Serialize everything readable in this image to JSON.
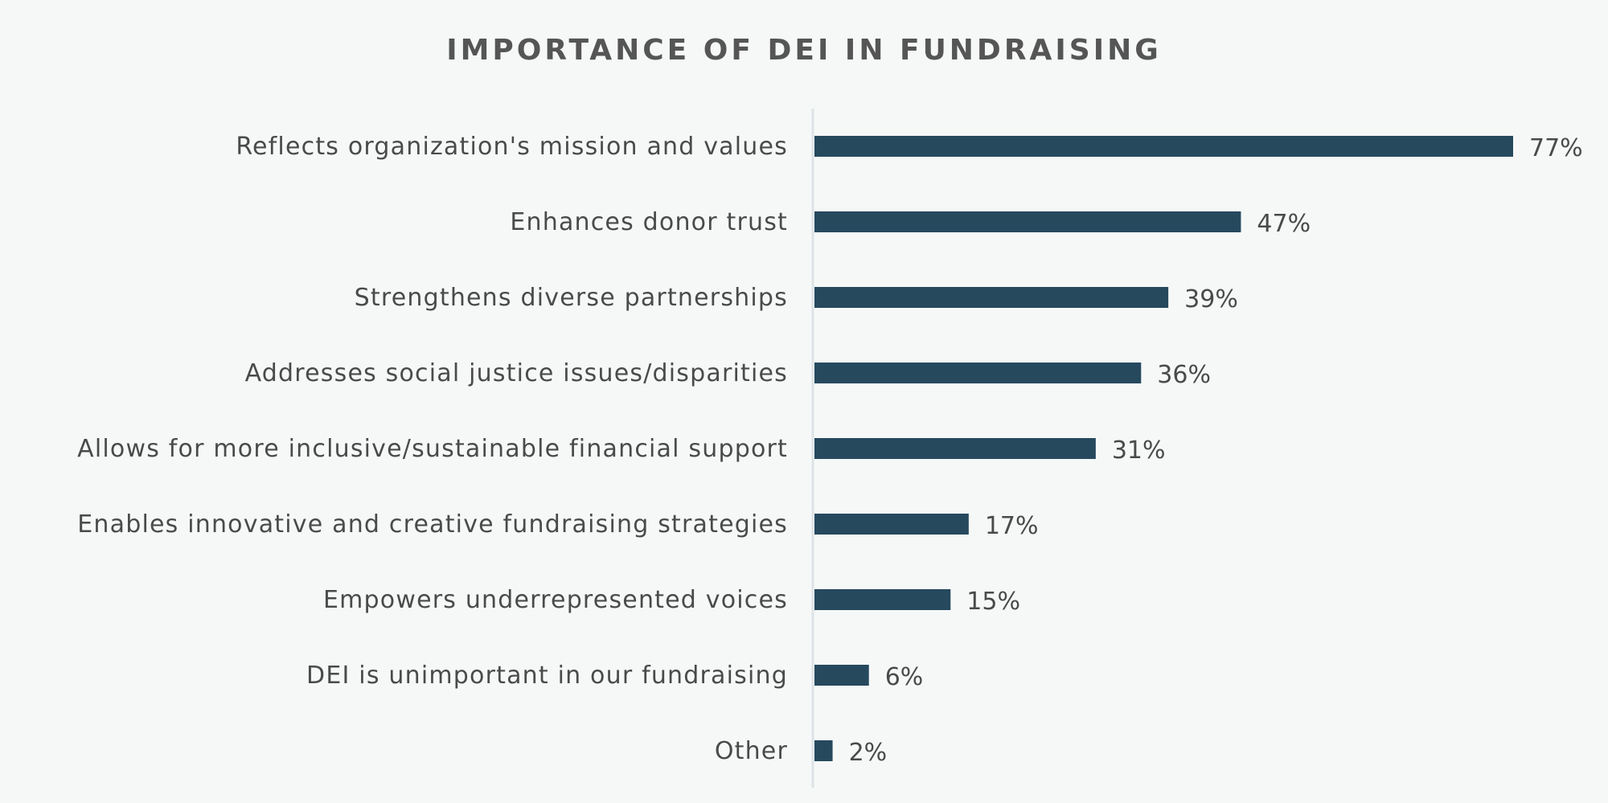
{
  "chart_data": {
    "type": "bar",
    "orientation": "horizontal",
    "title": "IMPORTANCE OF DEI IN FUNDRAISING",
    "categories": [
      "Reflects organization's mission and values",
      "Enhances donor trust",
      "Strengthens diverse partnerships",
      "Addresses social justice issues/disparities",
      "Allows for more inclusive/sustainable financial support",
      "Enables innovative and creative fundraising strategies",
      "Empowers underrepresented voices",
      "DEI is unimportant in our fundraising",
      "Other"
    ],
    "values": [
      77,
      47,
      39,
      36,
      31,
      17,
      15,
      6,
      2
    ],
    "value_labels": [
      "77%",
      "47%",
      "39%",
      "36%",
      "31%",
      "17%",
      "15%",
      "6%",
      "2%"
    ],
    "xlim": [
      0,
      77
    ],
    "grid": false,
    "legend": "none",
    "colors": {
      "bar": "#26495e",
      "axis": "#dde3e6",
      "text": "#4a4a4a",
      "title": "#555555"
    }
  }
}
